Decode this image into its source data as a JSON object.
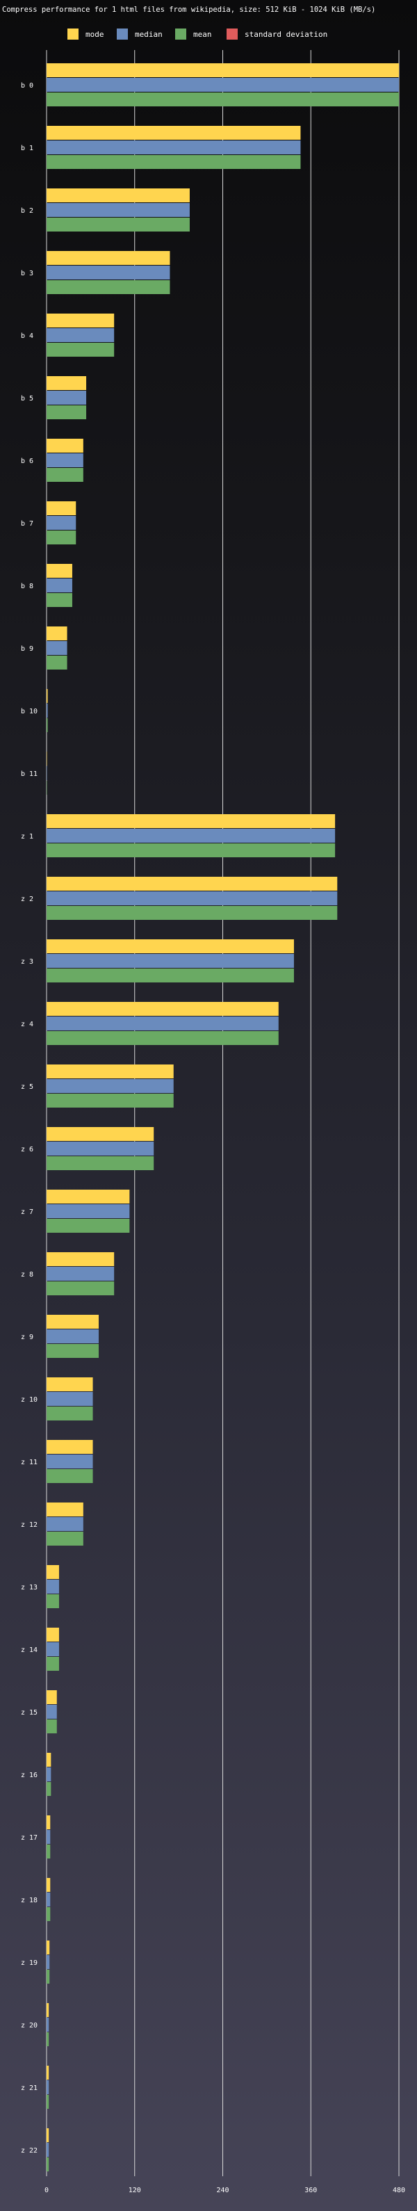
{
  "chart_data": {
    "type": "bar",
    "orientation": "horizontal",
    "title": "Compress performance for 1 html files from wikipedia, size: 512 KiB - 1024 KiB (MB/s)",
    "legend_position": "top",
    "legend": [
      "mode",
      "median",
      "mean",
      "standard deviation"
    ],
    "categories": [
      "b 0",
      "b 1",
      "b 2",
      "b 3",
      "b 4",
      "b 5",
      "b 6",
      "b 7",
      "b 8",
      "b 9",
      "b 10",
      "b 11",
      "z 1",
      "z 2",
      "z 3",
      "z 4",
      "z 5",
      "z 6",
      "z 7",
      "z 8",
      "z 9",
      "z 10",
      "z 11",
      "z 12",
      "z 13",
      "z 14",
      "z 15",
      "z 16",
      "z 17",
      "z 18",
      "z 19",
      "z 20",
      "z 21",
      "z 22"
    ],
    "series": [
      {
        "name": "mode",
        "color": "#ffd54f",
        "values": [
          480,
          346,
          195,
          168,
          92,
          54,
          50,
          40,
          35,
          28,
          1.5,
          0.5,
          393,
          396,
          337,
          316,
          173,
          146,
          113,
          92,
          71,
          63,
          63,
          50,
          17,
          17,
          14,
          6,
          5,
          5,
          4,
          3,
          3,
          3
        ]
      },
      {
        "name": "median",
        "color": "#6a8bbd",
        "values": [
          480,
          346,
          195,
          168,
          92,
          54,
          50,
          40,
          35,
          28,
          1.5,
          0.5,
          393,
          396,
          337,
          316,
          173,
          146,
          113,
          92,
          71,
          63,
          63,
          50,
          17,
          17,
          14,
          6,
          5,
          5,
          4,
          3,
          3,
          3
        ]
      },
      {
        "name": "mean",
        "color": "#6aaa64",
        "values": [
          480,
          346,
          195,
          168,
          92,
          54,
          50,
          40,
          35,
          28,
          1.5,
          0.5,
          393,
          396,
          337,
          316,
          173,
          146,
          113,
          92,
          71,
          63,
          63,
          50,
          17,
          17,
          14,
          6,
          5,
          5,
          4,
          3,
          3,
          3
        ]
      },
      {
        "name": "standard deviation",
        "color": "#e05c5c",
        "values": [
          0,
          0,
          0,
          0,
          0,
          0,
          0,
          0,
          0,
          0,
          0,
          0,
          0,
          0,
          0,
          0,
          0,
          0,
          0,
          0,
          0,
          0,
          0,
          0,
          0,
          0,
          0,
          0,
          0,
          0,
          0,
          0,
          0,
          0
        ]
      }
    ],
    "xlim": [
      0,
      480
    ],
    "x_ticks": [
      0,
      120,
      240,
      360,
      480
    ],
    "grid": true
  }
}
